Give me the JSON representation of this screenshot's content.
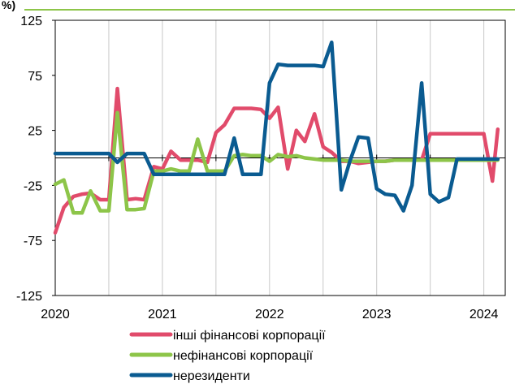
{
  "chart_data": {
    "type": "line",
    "unit_label": "%)",
    "y_ticks": [
      125,
      75,
      25,
      -25,
      -75,
      -125
    ],
    "ylim": [
      -125,
      125
    ],
    "x_ticks": [
      "2020",
      "2021",
      "2022",
      "2023",
      "2024"
    ],
    "xlim": [
      2020.0,
      2024.2
    ],
    "grid": "vertical",
    "legend_position": "bottom",
    "colors": {
      "top_rule": "#8DC549",
      "axis": "#000000",
      "grid": "#c8c8c8"
    },
    "x": [
      2020.0,
      2020.08,
      2020.17,
      2020.25,
      2020.33,
      2020.42,
      2020.5,
      2020.58,
      2020.67,
      2020.75,
      2020.83,
      2020.92,
      2021.0,
      2021.08,
      2021.17,
      2021.25,
      2021.33,
      2021.42,
      2021.5,
      2021.58,
      2021.67,
      2021.75,
      2021.83,
      2021.92,
      2022.0,
      2022.08,
      2022.17,
      2022.25,
      2022.33,
      2022.42,
      2022.5,
      2022.58,
      2022.67,
      2022.75,
      2022.83,
      2022.92,
      2023.0,
      2023.08,
      2023.17,
      2023.25,
      2023.33,
      2023.42,
      2023.5,
      2023.58,
      2023.67,
      2023.75,
      2023.83,
      2023.92,
      2024.0,
      2024.08,
      2024.13
    ],
    "series": [
      {
        "name": "інші фінансові корпорації",
        "color": "#E14B6B",
        "values": [
          -68,
          -45,
          -35,
          -33,
          -32,
          -38,
          -38,
          63,
          -38,
          -37,
          -38,
          -8,
          -10,
          6,
          -2,
          -2,
          -2,
          -4,
          23,
          30,
          45,
          45,
          45,
          44,
          36,
          46,
          -10,
          25,
          15,
          40,
          10,
          5,
          -3,
          -3,
          -5,
          -4,
          -3,
          -3,
          -2,
          -2,
          -2,
          -2,
          22,
          22,
          22,
          22,
          22,
          22,
          22,
          -21,
          26
        ]
      },
      {
        "name": "нефінансові корпорації",
        "color": "#8DC549",
        "values": [
          -24,
          -20,
          -50,
          -50,
          -30,
          -48,
          -48,
          41,
          -47,
          -47,
          -46,
          -12,
          -12,
          -10,
          -12,
          -12,
          17,
          -12,
          -12,
          -12,
          2,
          3,
          2,
          2,
          -3,
          3,
          1,
          2,
          0,
          -1,
          -2,
          -2,
          -2,
          -3,
          -3,
          -3,
          -3,
          -3,
          -2,
          -2,
          -2,
          -2,
          -2,
          -2,
          -2,
          -2,
          -2,
          -2,
          -2,
          -2,
          -2
        ]
      },
      {
        "name": "нерезиденти",
        "color": "#0A5B91",
        "values": [
          4,
          4,
          4,
          4,
          4,
          4,
          4,
          -4,
          4,
          4,
          4,
          -15,
          -15,
          -15,
          -15,
          -15,
          -15,
          -15,
          -15,
          -15,
          18,
          -15,
          -15,
          -15,
          68,
          85,
          84,
          84,
          84,
          84,
          83,
          105,
          -29,
          -3,
          19,
          18,
          -28,
          -33,
          -34,
          -48,
          -25,
          68,
          -33,
          -40,
          -36,
          -1,
          -1,
          -1,
          -1,
          -1,
          -1
        ]
      }
    ]
  }
}
